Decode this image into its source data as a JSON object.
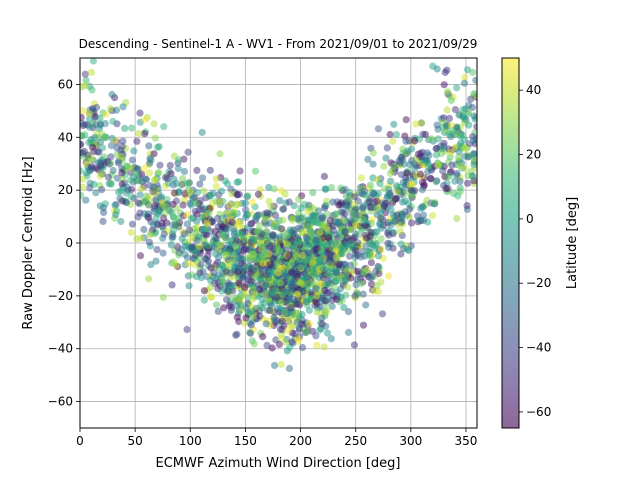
{
  "chart_data": {
    "type": "scatter",
    "title": "Descending - Sentinel-1 A - WV1 - From 2021/09/01 to 2021/09/29",
    "xlabel": "ECMWF Azimuth Wind Direction [deg]",
    "ylabel": "Raw Doppler Centroid [Hz]",
    "xlim": [
      0,
      360
    ],
    "ylim": [
      -70,
      70
    ],
    "xticks": [
      0,
      50,
      100,
      150,
      200,
      250,
      300,
      350
    ],
    "yticks": [
      -60,
      -40,
      -20,
      0,
      20,
      40,
      60
    ],
    "grid": true,
    "marker_alpha": 0.5,
    "colorbar": {
      "label": "Latitude [deg]",
      "range": [
        -65,
        50
      ],
      "ticks": [
        -60,
        -40,
        -20,
        0,
        20,
        40
      ],
      "colormap": "viridis",
      "colors": [
        "#440154",
        "#482878",
        "#3e4989",
        "#31688e",
        "#26828e",
        "#1f9e89",
        "#35b779",
        "#6ece58",
        "#b5de2b",
        "#fde725"
      ]
    },
    "trend": {
      "description_points_xy": [
        [
          0,
          40
        ],
        [
          50,
          22
        ],
        [
          100,
          5
        ],
        [
          150,
          -8
        ],
        [
          185,
          -12
        ],
        [
          220,
          -8
        ],
        [
          270,
          8
        ],
        [
          320,
          32
        ],
        [
          360,
          42
        ]
      ]
    },
    "point_count": 2600
  }
}
